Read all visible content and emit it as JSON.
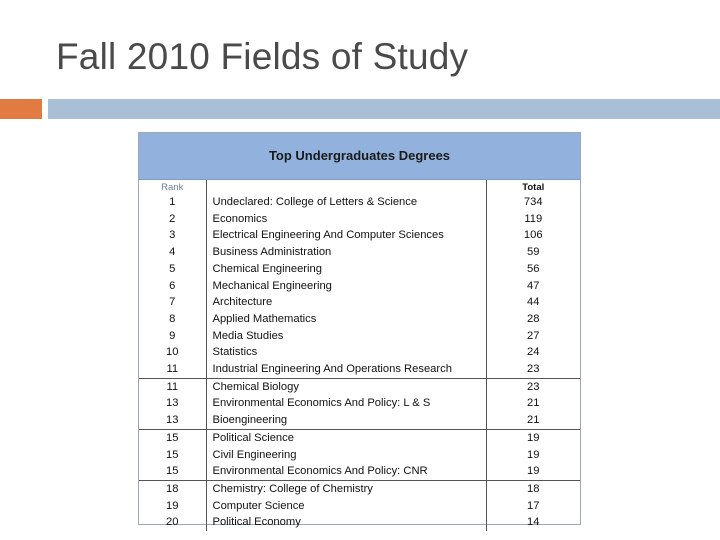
{
  "slide": {
    "title": "Fall 2010 Fields of Study"
  },
  "colors": {
    "accent_orange": "#e07b44",
    "accent_blue": "#a9bfd6",
    "table_header": "#92b2dd"
  },
  "table": {
    "title": "Top Undergraduates Degrees",
    "columns": {
      "rank": "Rank",
      "total": "Total"
    },
    "rows": [
      {
        "rank": "1",
        "name": "Undeclared: College of Letters & Science",
        "total": "734"
      },
      {
        "rank": "2",
        "name": "Economics",
        "total": "119"
      },
      {
        "rank": "3",
        "name": "Electrical Engineering And Computer Sciences",
        "total": "106"
      },
      {
        "rank": "4",
        "name": "Business Administration",
        "total": "59"
      },
      {
        "rank": "5",
        "name": "Chemical Engineering",
        "total": "56"
      },
      {
        "rank": "6",
        "name": "Mechanical Engineering",
        "total": "47"
      },
      {
        "rank": "7",
        "name": "Architecture",
        "total": "44"
      },
      {
        "rank": "8",
        "name": "Applied Mathematics",
        "total": "28"
      },
      {
        "rank": "9",
        "name": "Media Studies",
        "total": "27"
      },
      {
        "rank": "10",
        "name": "Statistics",
        "total": "24"
      },
      {
        "rank": "11",
        "name": "Industrial Engineering And Operations Research",
        "total": "23"
      },
      {
        "rank": "11",
        "name": "Chemical Biology",
        "total": "23"
      },
      {
        "rank": "13",
        "name": "Environmental Economics And Policy:  L & S",
        "total": "21"
      },
      {
        "rank": "13",
        "name": "Bioengineering",
        "total": "21"
      },
      {
        "rank": "15",
        "name": "Political Science",
        "total": "19"
      },
      {
        "rank": "15",
        "name": "Civil Engineering",
        "total": "19"
      },
      {
        "rank": "15",
        "name": "Environmental Economics And Policy: CNR",
        "total": "19"
      },
      {
        "rank": "18",
        "name": "Chemistry: College of Chemistry",
        "total": "18"
      },
      {
        "rank": "19",
        "name": "Computer Science",
        "total": "17"
      },
      {
        "rank": "20",
        "name": "Political Economy",
        "total": "14"
      }
    ]
  }
}
